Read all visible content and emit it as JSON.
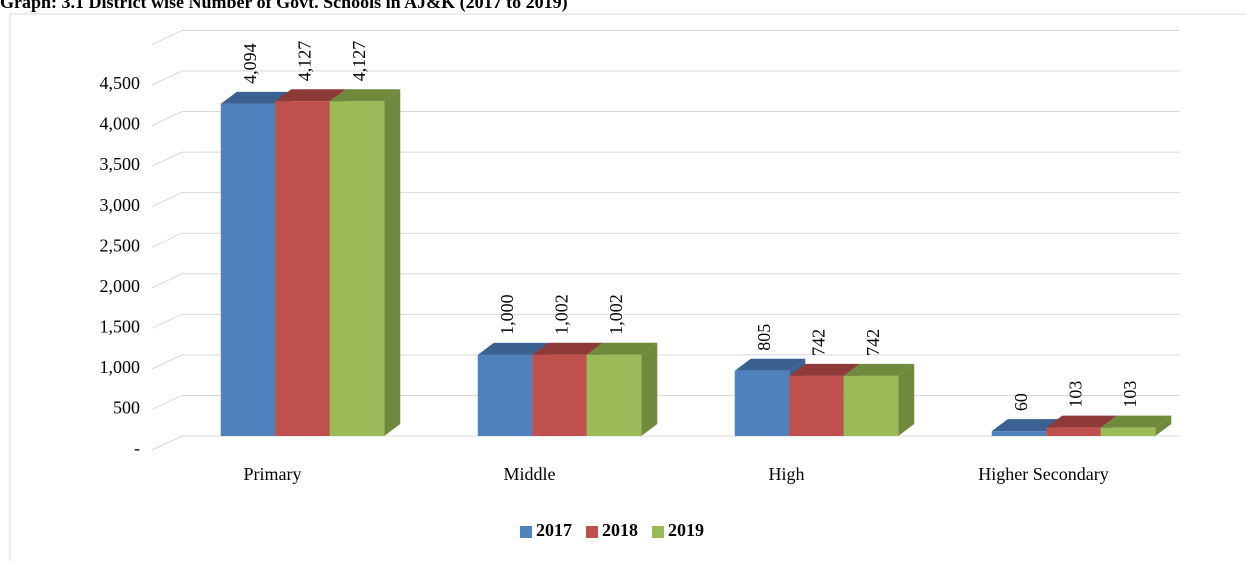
{
  "chart_data": {
    "type": "bar3d",
    "title": "Graph: 3.1 District wise Number of Govt. Schools in AJ&K (2017 to 2019)",
    "categories": [
      "Primary",
      "Middle",
      "High",
      "Higher Secondary"
    ],
    "series": [
      {
        "name": "2017",
        "color": "#4f81bd",
        "side_color": "#3a6192",
        "values": [
          4094,
          1000,
          805,
          60
        ],
        "value_labels": [
          "4,094",
          "1,000",
          "805",
          "60"
        ]
      },
      {
        "name": "2018",
        "color": "#c0504d",
        "side_color": "#8e3a38",
        "values": [
          4127,
          1002,
          742,
          103
        ],
        "value_labels": [
          "4,127",
          "1,002",
          "742",
          "103"
        ]
      },
      {
        "name": "2019",
        "color": "#9bbb59",
        "side_color": "#6f8a3c",
        "values": [
          4127,
          1002,
          742,
          103
        ],
        "value_labels": [
          "4,127",
          "1,002",
          "742",
          "103"
        ]
      }
    ],
    "ylim": [
      0,
      5000
    ],
    "yticks": [
      {
        "value": 0,
        "label": "-"
      },
      500,
      {
        "value": 1000,
        "label": "1,000"
      },
      {
        "value": 1500,
        "label": "1,500"
      },
      {
        "value": 2000,
        "label": "2,000"
      },
      {
        "value": 2500,
        "label": "2,500"
      },
      {
        "value": 3000,
        "label": "3,000"
      },
      {
        "value": 3500,
        "label": "3,500"
      },
      {
        "value": 4000,
        "label": "4,000"
      },
      {
        "value": 4500,
        "label": "4,500"
      }
    ],
    "grid": true,
    "legend": "bottom"
  }
}
